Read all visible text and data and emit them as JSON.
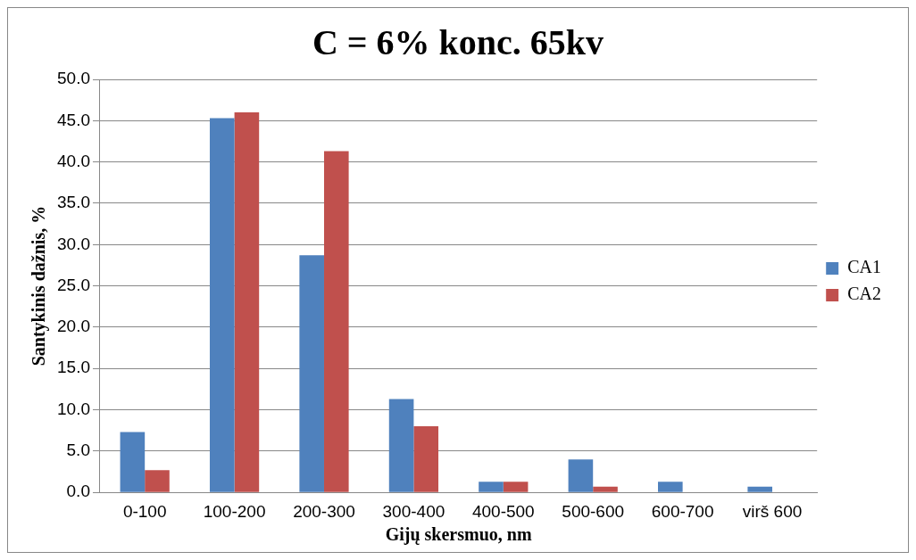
{
  "chart_data": {
    "type": "bar",
    "title": "C = 6% konc. 65kv",
    "xlabel": "Gijų skersmuo, nm",
    "ylabel": "Santykinis dažnis, %",
    "categories": [
      "0-100",
      "100-200",
      "200-300",
      "300-400",
      "400-500",
      "500-600",
      "600-700",
      "virš 600"
    ],
    "series": [
      {
        "name": "CA1",
        "color": "#4f81bd",
        "values": [
          7.3,
          45.3,
          28.7,
          11.3,
          1.3,
          4.0,
          1.3,
          0.7
        ]
      },
      {
        "name": "CA2",
        "color": "#c0504d",
        "values": [
          2.7,
          46.0,
          41.3,
          8.0,
          1.3,
          0.7,
          0,
          0
        ]
      }
    ],
    "ylim": [
      0,
      50
    ],
    "yticks": [
      {
        "value": 0,
        "label": "0.0"
      },
      {
        "value": 5,
        "label": "5.0"
      },
      {
        "value": 10,
        "label": "10.0"
      },
      {
        "value": 15,
        "label": "15.0"
      },
      {
        "value": 20,
        "label": "20.0"
      },
      {
        "value": 25,
        "label": "25.0"
      },
      {
        "value": 30,
        "label": "30.0"
      },
      {
        "value": 35,
        "label": "35.0"
      },
      {
        "value": 40,
        "label": "40.0"
      },
      {
        "value": 45,
        "label": "45.0"
      },
      {
        "value": 50,
        "label": "50.0"
      }
    ],
    "grid": "y",
    "legend": "right"
  }
}
